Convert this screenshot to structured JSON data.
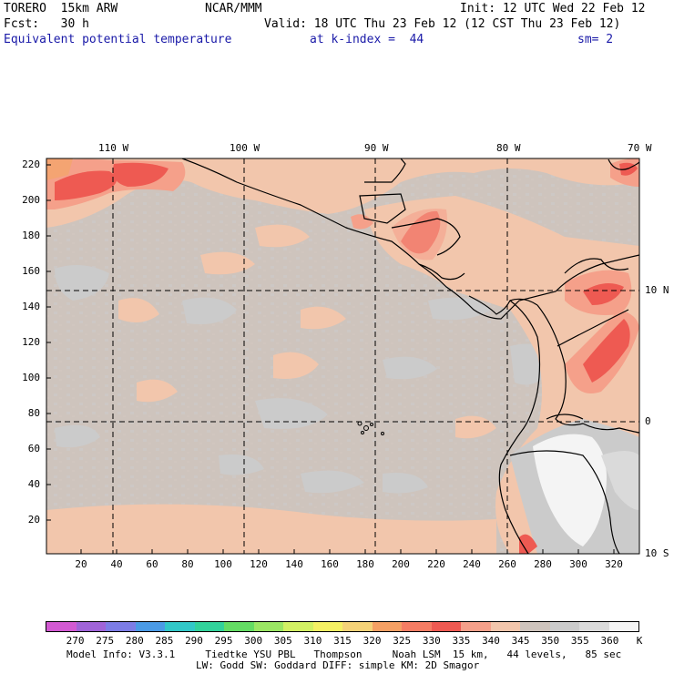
{
  "header": {
    "model": "TORERO  15km ARW",
    "org": "NCAR/MMM",
    "init": "Init: 12 UTC Wed 22 Feb 12",
    "fcst": "Fcst:   30 h",
    "valid": "Valid: 18 UTC Thu 23 Feb 12 (12 CST Thu 23 Feb 12)",
    "field": "Equivalent potential temperature",
    "level": "at k-index =  44",
    "smooth": "sm= 2"
  },
  "map": {
    "lon_labels": [
      "110 W",
      "100 W",
      "90 W",
      "80 W",
      "70 W"
    ],
    "lat_labels": [
      "10 N",
      "0",
      "10 S"
    ],
    "y_grid_labels": [
      "220",
      "200",
      "180",
      "160",
      "140",
      "120",
      "100",
      "80",
      "60",
      "40",
      "20"
    ],
    "x_grid_labels": [
      "20",
      "40",
      "60",
      "80",
      "100",
      "120",
      "140",
      "160",
      "180",
      "200",
      "220",
      "240",
      "260",
      "280",
      "300",
      "320"
    ],
    "colors": {
      "ocean_base": "#cec4bd",
      "low_gray": "#cbcbcb",
      "peach": "#f2c6ac",
      "salmon": "#f5a08a",
      "red": "#ee5a52",
      "orange": "#f4a472",
      "lightgray": "#dadada",
      "white": "#f4f4f4"
    }
  },
  "colorbar": {
    "labels": [
      "270",
      "275",
      "280",
      "285",
      "290",
      "295",
      "300",
      "305",
      "310",
      "315",
      "320",
      "325",
      "330",
      "335",
      "340",
      "345",
      "350",
      "355",
      "360",
      "K"
    ],
    "colors": [
      "#d25ad2",
      "#a064d8",
      "#7d7de6",
      "#4b9be6",
      "#32c8c8",
      "#32d29b",
      "#64dc64",
      "#9be664",
      "#d2f064",
      "#f5f064",
      "#f5d278",
      "#f5a064",
      "#f57d64",
      "#ee5a52",
      "#f5a08a",
      "#f2c6ac",
      "#cec4bd",
      "#cbcbcb",
      "#dadada",
      "#f4f4f4"
    ]
  },
  "footer": {
    "line1": "Model Info: V3.3.1     Tiedtke YSU PBL   Thompson     Noah LSM  15 km,   44 levels,   85 sec",
    "line2": "LW: Godd SW: Goddard DIFF: simple KM: 2D Smagor"
  }
}
